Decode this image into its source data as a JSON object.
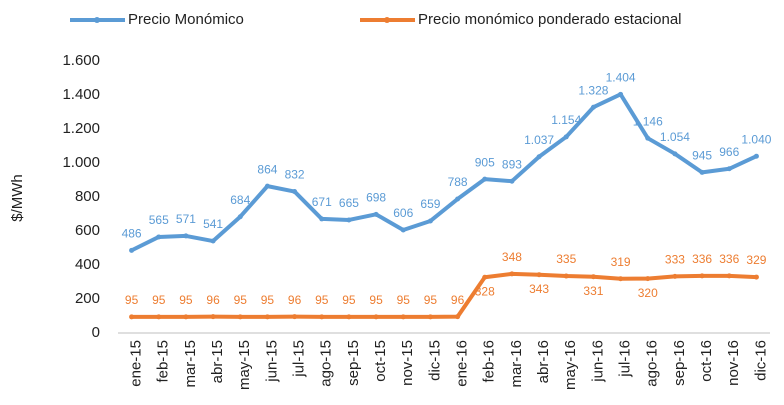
{
  "chart_data": {
    "type": "line",
    "axis_label_y": "$/MWh",
    "categories": [
      "ene-15",
      "feb-15",
      "mar-15",
      "abr-15",
      "may-15",
      "jun-15",
      "jul-15",
      "ago-15",
      "sep-15",
      "oct-15",
      "nov-15",
      "dic-15",
      "ene-16",
      "feb-16",
      "mar-16",
      "abr-16",
      "may-16",
      "jun-16",
      "jul-16",
      "ago-16",
      "sep-16",
      "oct-16",
      "nov-16",
      "dic-16"
    ],
    "series": [
      {
        "name": "Precio Monómico",
        "color": "#5b9bd5",
        "values": [
          486,
          565,
          571,
          541,
          684,
          864,
          832,
          671,
          665,
          698,
          606,
          659,
          788,
          905,
          893,
          1037,
          1154,
          1328,
          1404,
          1146,
          1054,
          945,
          966,
          1040
        ],
        "value_labels": [
          "486",
          "565",
          "571",
          "541",
          "684",
          "864",
          "832",
          "671",
          "665",
          "698",
          "606",
          "659",
          "788",
          "905",
          "893",
          "1.037",
          "1.154",
          "1.328",
          "1.404",
          "1.146",
          "1.054",
          "945",
          "966",
          "1.040"
        ]
      },
      {
        "name": "Precio monómico ponderado estacional",
        "color": "#ed7d31",
        "values": [
          95,
          95,
          95,
          96,
          95,
          95,
          96,
          95,
          95,
          95,
          95,
          95,
          96,
          328,
          348,
          343,
          335,
          331,
          319,
          320,
          333,
          336,
          336,
          329
        ]
      }
    ],
    "ylim": [
      0,
      1600
    ],
    "yticks": [
      0,
      200,
      400,
      600,
      800,
      {
        "value": 1000,
        "label": "1.000"
      },
      {
        "value": 1200,
        "label": "1.200"
      },
      {
        "value": 1400,
        "label": "1.400"
      },
      {
        "value": 1600,
        "label": "1.600"
      }
    ],
    "legend": "top"
  }
}
